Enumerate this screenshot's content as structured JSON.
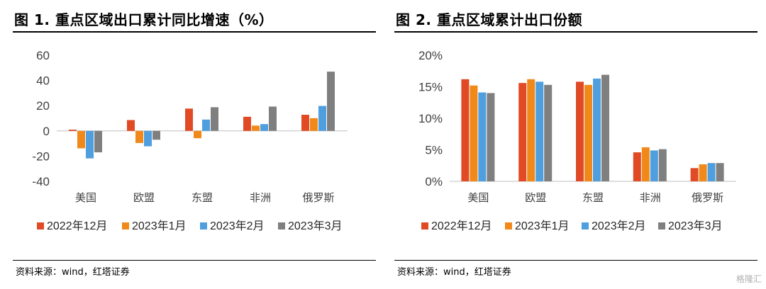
{
  "colors": {
    "series": [
      "#E04A25",
      "#F0891A",
      "#4F9EDE",
      "#7F7F7F"
    ]
  },
  "left": {
    "title": "图 1. 重点区域出口累计同比增速（%）",
    "source": "资料来源：wind，红塔证券"
  },
  "right": {
    "title": "图 2. 重点区域累计出口份额",
    "source": "资料来源：wind，红塔证券"
  },
  "watermark": "格隆汇",
  "chart_data": [
    {
      "type": "bar",
      "title": "图 1. 重点区域出口累计同比增速（%）",
      "categories": [
        "美国",
        "欧盟",
        "东盟",
        "非洲",
        "俄罗斯"
      ],
      "series": [
        {
          "name": "2022年12月",
          "values": [
            1,
            8.6,
            17.7,
            11.2,
            12.8
          ]
        },
        {
          "name": "2023年1月",
          "values": [
            -13.8,
            -9.6,
            -5.8,
            4.2,
            10.1
          ]
        },
        {
          "name": "2023年2月",
          "values": [
            -21.8,
            -12.2,
            9,
            5.4,
            19.8
          ]
        },
        {
          "name": "2023年3月",
          "values": [
            -17,
            -7,
            18.8,
            19.3,
            47
          ]
        }
      ],
      "ylim": [
        -40,
        60
      ],
      "yticks": [
        -40,
        -20,
        0,
        20,
        40,
        60
      ],
      "ytick_labels": [
        "-40",
        "-20",
        "0",
        "20",
        "40",
        "60"
      ],
      "legend": "bottom"
    },
    {
      "type": "bar",
      "title": "图 2. 重点区域累计出口份额",
      "categories": [
        "美国",
        "欧盟",
        "东盟",
        "非洲",
        "俄罗斯"
      ],
      "series": [
        {
          "name": "2022年12月",
          "values": [
            16.2,
            15.6,
            15.8,
            4.6,
            2.1
          ]
        },
        {
          "name": "2023年1月",
          "values": [
            15.2,
            16.2,
            15.3,
            5.4,
            2.7
          ]
        },
        {
          "name": "2023年2月",
          "values": [
            14.1,
            15.8,
            16.3,
            4.9,
            2.9
          ]
        },
        {
          "name": "2023年3月",
          "values": [
            14,
            15.3,
            16.9,
            5.1,
            2.9
          ]
        }
      ],
      "ylim": [
        0,
        20
      ],
      "yticks": [
        0,
        5,
        10,
        15,
        20
      ],
      "ytick_labels": [
        "0%",
        "5%",
        "10%",
        "15%",
        "20%"
      ],
      "legend": "bottom"
    }
  ]
}
